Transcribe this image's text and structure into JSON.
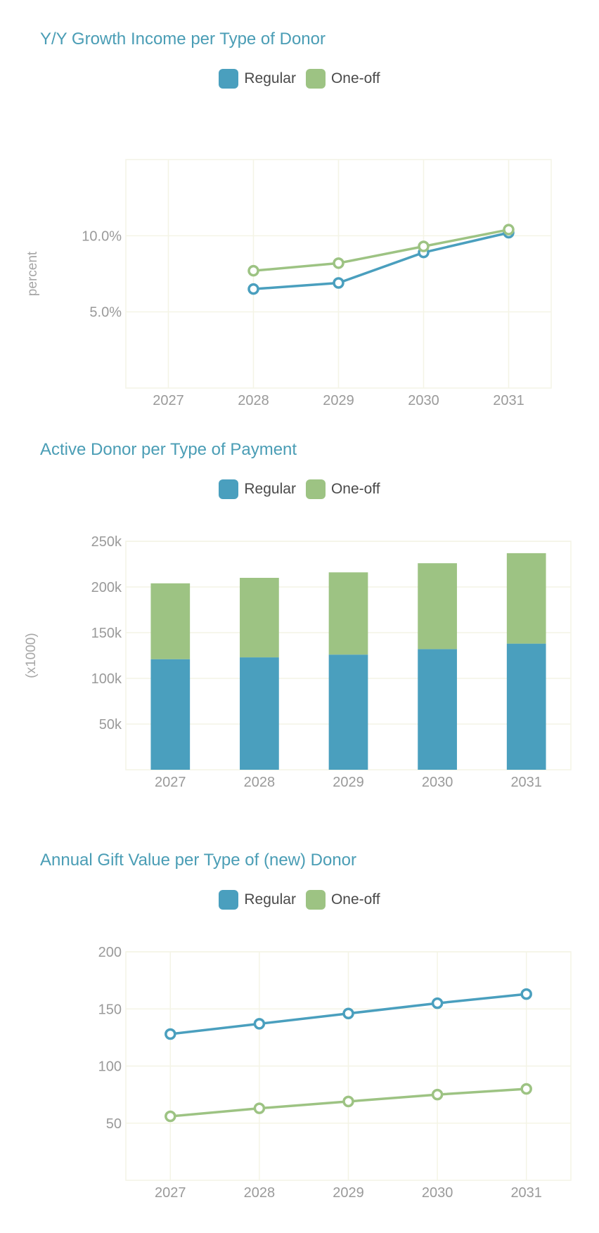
{
  "colors": {
    "regular": "#4a9fbe",
    "oneoff": "#9dc383",
    "title": "#4a9db5",
    "grid": "#f4f4e6"
  },
  "charts": [
    {
      "title": "Y/Y Growth Income per Type of Donor",
      "legend": [
        "Regular",
        "One-off"
      ]
    },
    {
      "title": "Active Donor per Type of Payment",
      "legend": [
        "Regular",
        "One-off"
      ]
    },
    {
      "title": "Annual Gift Value per Type of (new) Donor",
      "legend": [
        "Regular",
        "One-off"
      ]
    }
  ],
  "chart_data": [
    {
      "type": "line",
      "title": "Y/Y Growth Income per Type of Donor",
      "xlabel": "",
      "ylabel": "percent",
      "categories": [
        "2027",
        "2028",
        "2029",
        "2030",
        "2031"
      ],
      "ylim": [
        0,
        15
      ],
      "yticks": [
        5,
        10
      ],
      "ytick_labels": [
        "5.0%",
        "10.0%"
      ],
      "grid": true,
      "legend_position": "top-center",
      "series": [
        {
          "name": "Regular",
          "values": [
            null,
            6.5,
            6.9,
            8.9,
            10.2
          ]
        },
        {
          "name": "One-off",
          "values": [
            null,
            7.7,
            8.2,
            9.3,
            10.4
          ]
        }
      ]
    },
    {
      "type": "bar",
      "stacked": true,
      "title": "Active Donor per Type of Payment",
      "xlabel": "",
      "ylabel": "(x1000)",
      "categories": [
        "2027",
        "2028",
        "2029",
        "2030",
        "2031"
      ],
      "ylim": [
        0,
        250000
      ],
      "yticks": [
        50000,
        100000,
        150000,
        200000,
        250000
      ],
      "ytick_labels": [
        "50k",
        "100k",
        "150k",
        "200k",
        "250k"
      ],
      "grid": true,
      "legend_position": "top-center",
      "series": [
        {
          "name": "Regular",
          "values": [
            121000,
            123000,
            126000,
            132000,
            138000
          ]
        },
        {
          "name": "One-off",
          "values": [
            83000,
            87000,
            90000,
            94000,
            99000
          ]
        }
      ]
    },
    {
      "type": "line",
      "title": "Annual Gift Value per Type of (new) Donor",
      "xlabel": "",
      "ylabel": "",
      "categories": [
        "2027",
        "2028",
        "2029",
        "2030",
        "2031"
      ],
      "ylim": [
        0,
        200
      ],
      "yticks": [
        50,
        100,
        150,
        200
      ],
      "ytick_labels": [
        "50",
        "100",
        "150",
        "200"
      ],
      "grid": true,
      "legend_position": "top-center",
      "series": [
        {
          "name": "Regular",
          "values": [
            128,
            137,
            146,
            155,
            163
          ]
        },
        {
          "name": "One-off",
          "values": [
            56,
            63,
            69,
            75,
            80
          ]
        }
      ]
    }
  ]
}
